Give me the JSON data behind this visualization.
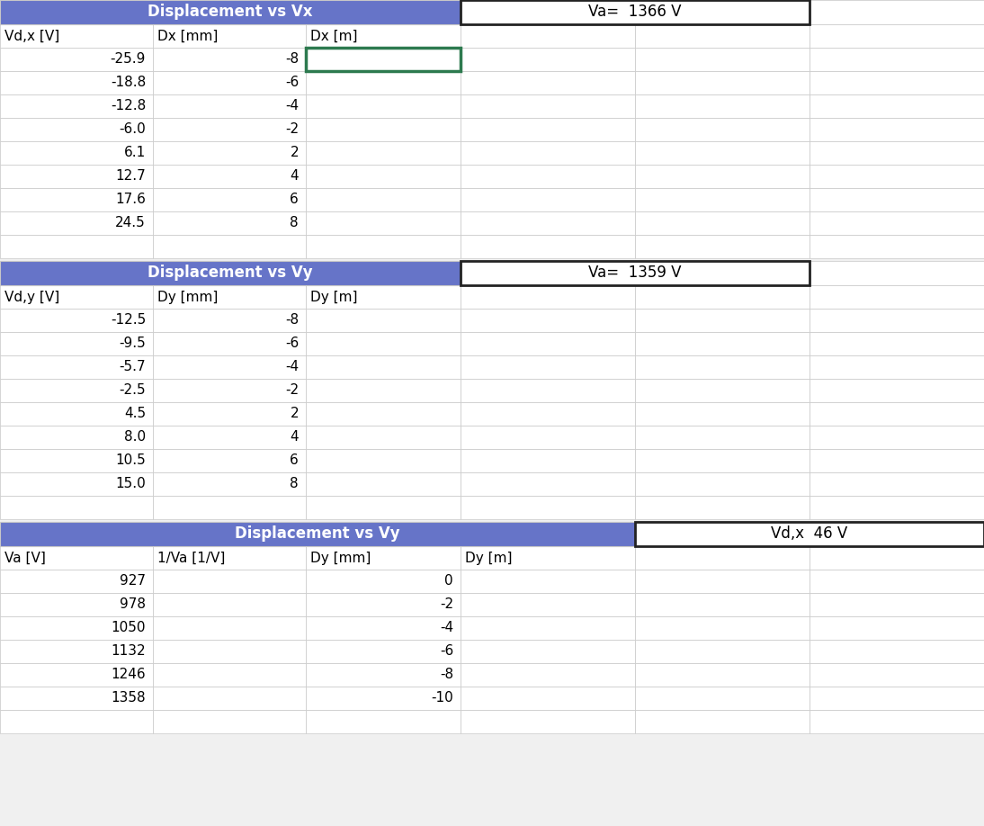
{
  "background_color": "#f0f0f0",
  "cell_bg": "#ffffff",
  "header_bg": "#6674c8",
  "header_text_color": "#ffffff",
  "border_color": "#c8c8c8",
  "dark_border_color": "#222222",
  "green_border_color": "#2d7a4f",
  "table1_title": "Displacement vs Vx",
  "table1_va_label": "Va=  1366 V",
  "table1_headers": [
    "Vd,x [V]",
    "Dx [mm]",
    "Dx [m]"
  ],
  "table1_col1": [
    -25.9,
    -18.8,
    -12.8,
    -6.0,
    6.1,
    12.7,
    17.6,
    24.5
  ],
  "table1_col2": [
    -8,
    -6,
    -4,
    -2,
    2,
    4,
    6,
    8
  ],
  "table2_title": "Displacement vs Vy",
  "table2_va_label": "Va=  1359 V",
  "table2_headers": [
    "Vd,y [V]",
    "Dy [mm]",
    "Dy [m]"
  ],
  "table2_col1": [
    -12.5,
    -9.5,
    -5.7,
    -2.5,
    4.5,
    8.0,
    10.5,
    15.0
  ],
  "table2_col2": [
    -8,
    -6,
    -4,
    -2,
    2,
    4,
    6,
    8
  ],
  "table3_title": "Displacement vs Vy",
  "table3_vdx_label": "Vd,x  46 V",
  "table3_headers": [
    "Va [V]",
    "1/Va [1/V]",
    "Dy [mm]",
    "Dy [m]"
  ],
  "table3_col1": [
    927,
    978,
    1050,
    1132,
    1246,
    1358
  ],
  "table3_col3": [
    0,
    -2,
    -4,
    -6,
    -8,
    -10
  ]
}
